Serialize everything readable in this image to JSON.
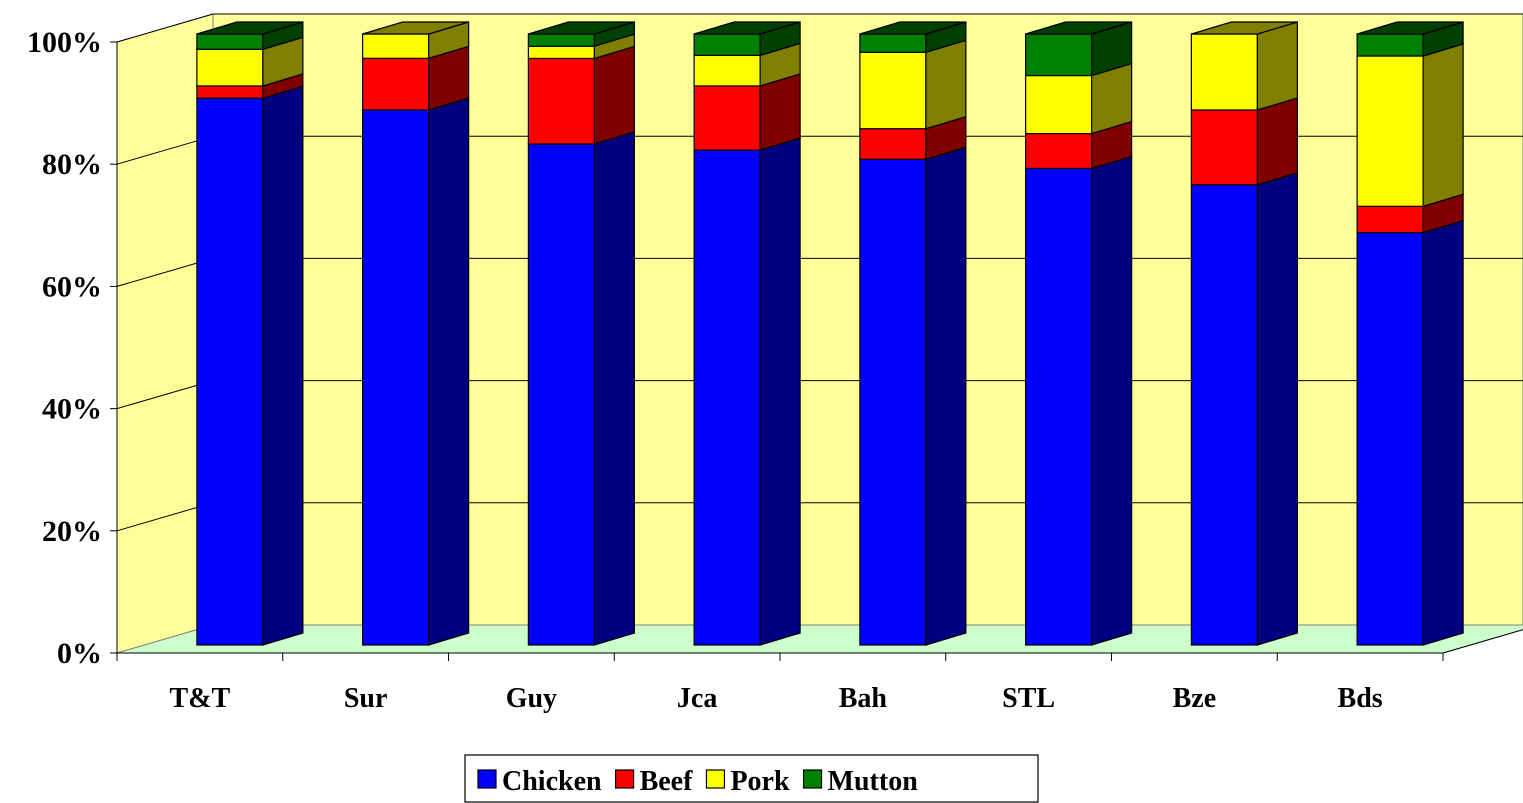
{
  "chart_data": {
    "type": "bar",
    "subtype": "stacked-100-percent-3d",
    "categories": [
      "T&T",
      "Sur",
      "Guy",
      "Jca",
      "Bah",
      "STL",
      "Bze",
      "Bds"
    ],
    "series": [
      {
        "name": "Chicken",
        "color": "#0000ff",
        "side_color": "#000080",
        "values": [
          89.5,
          88.0,
          82.0,
          81.0,
          79.5,
          78.0,
          75.7,
          67.5
        ]
      },
      {
        "name": "Beef",
        "color": "#ff0000",
        "side_color": "#800000",
        "values": [
          2.0,
          8.5,
          14.0,
          10.5,
          5.0,
          5.7,
          12.3,
          4.3
        ]
      },
      {
        "name": "Pork",
        "color": "#ffff00",
        "side_color": "#808000",
        "values": [
          6.0,
          4.0,
          2.0,
          5.0,
          12.5,
          9.5,
          12.5,
          24.6
        ]
      },
      {
        "name": "Mutton",
        "color": "#008000",
        "side_color": "#004000",
        "values": [
          2.5,
          0.0,
          2.0,
          3.5,
          3.0,
          6.8,
          0.0,
          3.6
        ]
      }
    ],
    "yticks": [
      "0%",
      "20%",
      "40%",
      "60%",
      "80%",
      "100%"
    ],
    "ylim": [
      0,
      100
    ],
    "grid": true,
    "legend": "bottom",
    "colors": {
      "wall": "#ffff99",
      "floor": "#ccffcc"
    }
  }
}
